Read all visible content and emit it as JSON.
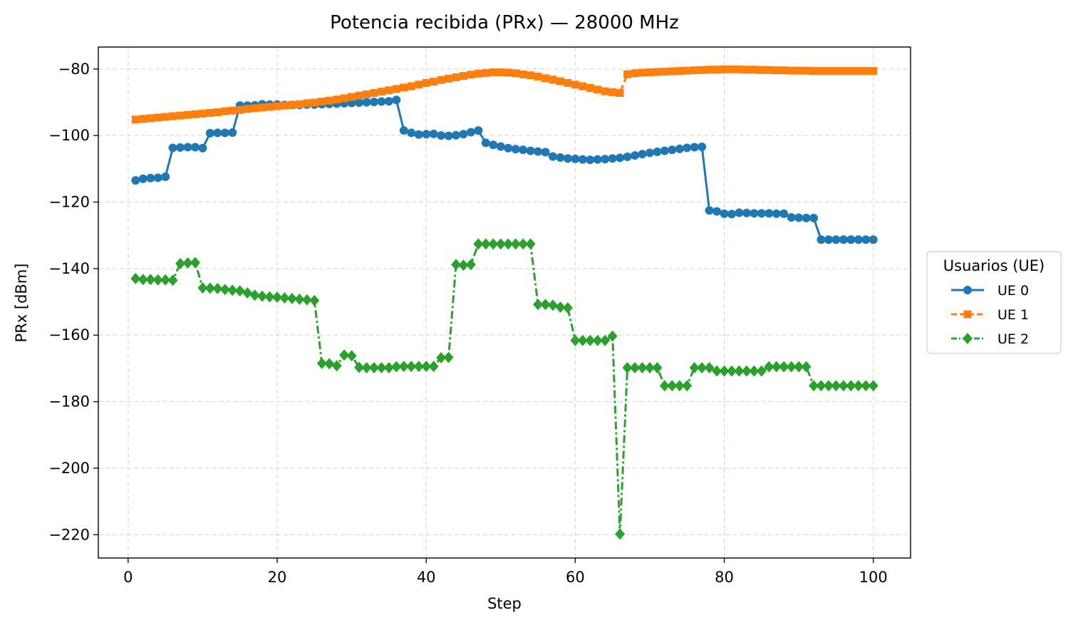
{
  "chart_data": {
    "type": "line",
    "title": "Potencia recibida (PRx) — 28000 MHz",
    "xlabel": "Step",
    "ylabel": "PRx [dBm]",
    "xlim": [
      -4,
      105
    ],
    "ylim": [
      -227,
      -73.4
    ],
    "xticks": [
      0,
      20,
      40,
      60,
      80,
      100
    ],
    "yticks": [
      -80,
      -100,
      -120,
      -140,
      -160,
      -180,
      -200,
      -220
    ],
    "xtick_labels": [
      "0",
      "20",
      "40",
      "60",
      "80",
      "100"
    ],
    "ytick_labels": [
      "−80",
      "−100",
      "−120",
      "−140",
      "−160",
      "−180",
      "−200",
      "−220"
    ],
    "grid": true,
    "legend": {
      "title": "Usuarios (UE)",
      "placement": "right"
    },
    "x": [
      1,
      2,
      3,
      4,
      5,
      6,
      7,
      8,
      9,
      10,
      11,
      12,
      13,
      14,
      15,
      16,
      17,
      18,
      19,
      20,
      21,
      22,
      23,
      24,
      25,
      26,
      27,
      28,
      29,
      30,
      31,
      32,
      33,
      34,
      35,
      36,
      37,
      38,
      39,
      40,
      41,
      42,
      43,
      44,
      45,
      46,
      47,
      48,
      49,
      50,
      51,
      52,
      53,
      54,
      55,
      56,
      57,
      58,
      59,
      60,
      61,
      62,
      63,
      64,
      65,
      66,
      67,
      68,
      69,
      70,
      71,
      72,
      73,
      74,
      75,
      76,
      77,
      78,
      79,
      80,
      81,
      82,
      83,
      84,
      85,
      86,
      87,
      88,
      89,
      90,
      91,
      92,
      93,
      94,
      95,
      96,
      97,
      98,
      99,
      100
    ],
    "series": [
      {
        "name": "UE 0",
        "color": "#1f77b4",
        "marker": "circle",
        "linestyle": "solid",
        "values": [
          -113.5,
          -113,
          -112.8,
          -112.7,
          -112.4,
          -103.7,
          -103.6,
          -103.5,
          -103.5,
          -103.8,
          -99.3,
          -99.2,
          -99.2,
          -99.1,
          -91.0,
          -91.0,
          -90.9,
          -90.6,
          -90.7,
          -90.7,
          -90.8,
          -90.8,
          -90.8,
          -90.7,
          -90.7,
          -90.6,
          -90.5,
          -90.4,
          -90.3,
          -90.2,
          -90.1,
          -90.0,
          -89.9,
          -89.8,
          -89.7,
          -89.3,
          -98.5,
          -99.2,
          -99.7,
          -99.6,
          -99.5,
          -100.0,
          -100.1,
          -99.9,
          -99.6,
          -99.0,
          -98.5,
          -102.2,
          -102.8,
          -103.3,
          -103.8,
          -104.1,
          -104.3,
          -104.6,
          -104.8,
          -105.0,
          -106.3,
          -106.6,
          -106.9,
          -107.0,
          -107.2,
          -107.3,
          -107.2,
          -107.1,
          -106.9,
          -106.7,
          -106.4,
          -106.0,
          -105.6,
          -105.2,
          -104.9,
          -104.6,
          -104.3,
          -104.0,
          -103.7,
          -103.5,
          -103.4,
          -122.5,
          -122.8,
          -123.5,
          -123.6,
          -123.2,
          -123.3,
          -123.4,
          -123.4,
          -123.4,
          -123.5,
          -123.5,
          -124.6,
          -124.7,
          -124.8,
          -124.8,
          -131.3,
          -131.3,
          -131.3,
          -131.3,
          -131.3,
          -131.3,
          -131.3,
          -131.3
        ]
      },
      {
        "name": "UE 1",
        "color": "#ff7f0e",
        "marker": "square",
        "linestyle": "dashed",
        "values": [
          -95.2,
          -95.0,
          -94.8,
          -94.6,
          -94.4,
          -94.2,
          -94.0,
          -93.8,
          -93.6,
          -93.4,
          -93.2,
          -93.0,
          -92.7,
          -92.5,
          -92.3,
          -92.0,
          -91.8,
          -91.6,
          -91.4,
          -91.2,
          -91.0,
          -90.8,
          -90.6,
          -90.3,
          -90.1,
          -89.8,
          -89.5,
          -89.2,
          -88.8,
          -88.4,
          -88.0,
          -87.6,
          -87.2,
          -86.8,
          -86.4,
          -86.0,
          -85.6,
          -85.2,
          -84.7,
          -84.2,
          -83.8,
          -83.3,
          -82.9,
          -82.5,
          -82.1,
          -81.7,
          -81.4,
          -81.2,
          -81.0,
          -81.0,
          -81.1,
          -81.3,
          -81.6,
          -81.9,
          -82.3,
          -82.8,
          -83.2,
          -83.7,
          -84.2,
          -84.7,
          -85.2,
          -85.7,
          -86.2,
          -86.7,
          -87.0,
          -87.2,
          -81.6,
          -81.3,
          -81.1,
          -81.0,
          -80.9,
          -80.8,
          -80.7,
          -80.6,
          -80.5,
          -80.4,
          -80.3,
          -80.2,
          -80.2,
          -80.1,
          -80.1,
          -80.1,
          -80.2,
          -80.2,
          -80.3,
          -80.3,
          -80.4,
          -80.4,
          -80.5,
          -80.5,
          -80.5,
          -80.6,
          -80.6,
          -80.6,
          -80.6,
          -80.6,
          -80.6,
          -80.6,
          -80.6,
          -80.6
        ]
      },
      {
        "name": "UE 2",
        "color": "#2ca02c",
        "marker": "diamond",
        "linestyle": "dashdot",
        "values": [
          -143.0,
          -143.3,
          -143.3,
          -143.4,
          -143.4,
          -143.5,
          -138.5,
          -138.3,
          -138.2,
          -145.8,
          -145.9,
          -146.0,
          -146.3,
          -146.5,
          -146.7,
          -147.3,
          -148.0,
          -148.3,
          -148.5,
          -148.6,
          -148.8,
          -149.0,
          -149.2,
          -149.4,
          -149.6,
          -168.5,
          -168.6,
          -169.2,
          -166.0,
          -166.2,
          -169.7,
          -169.8,
          -169.8,
          -169.8,
          -169.8,
          -169.5,
          -169.4,
          -169.4,
          -169.4,
          -169.4,
          -169.4,
          -166.8,
          -166.7,
          -138.8,
          -139.0,
          -138.8,
          -132.6,
          -132.6,
          -132.6,
          -132.6,
          -132.6,
          -132.6,
          -132.6,
          -132.6,
          -150.8,
          -150.8,
          -151.0,
          -151.6,
          -151.8,
          -161.6,
          -161.6,
          -161.6,
          -161.6,
          -161.6,
          -160.3,
          -219.8,
          -169.8,
          -169.8,
          -169.8,
          -169.8,
          -169.8,
          -175.2,
          -175.2,
          -175.2,
          -175.2,
          -169.8,
          -169.8,
          -169.8,
          -170.8,
          -170.8,
          -170.8,
          -170.8,
          -170.8,
          -170.8,
          -170.8,
          -169.5,
          -169.5,
          -169.5,
          -169.5,
          -169.5,
          -169.5,
          -175.2,
          -175.2,
          -175.2,
          -175.2,
          -175.2,
          -175.2,
          -175.2,
          -175.2,
          -175.2
        ]
      }
    ]
  }
}
